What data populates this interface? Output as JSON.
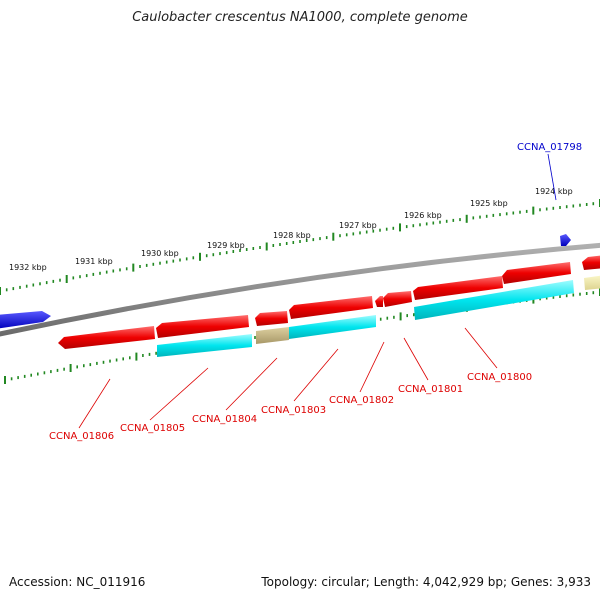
{
  "title": "Caulobacter crescentus NA1000, complete genome",
  "footer": {
    "accession": "Accession: NC_011916",
    "summary": "Topology: circular; Length: 4,042,929 bp; Genes: 3,933"
  },
  "colors": {
    "backbone": "#888888",
    "gene_red": "#ee0000",
    "gene_cyan": "#00e5ee",
    "gene_tan": "#c2b280",
    "gene_khaki": "#eee8aa",
    "gene_blue": "#0000ee",
    "tick": "#228822",
    "label_red": "#dd0000",
    "label_blue": "#0000cc"
  },
  "scale_labels": [
    {
      "text": "1932 kbp",
      "kbp": 1932
    },
    {
      "text": "1931 kbp",
      "kbp": 1931
    },
    {
      "text": "1930 kbp",
      "kbp": 1930
    },
    {
      "text": "1929 kbp",
      "kbp": 1929
    },
    {
      "text": "1928 kbp",
      "kbp": 1928
    },
    {
      "text": "1927 kbp",
      "kbp": 1927
    },
    {
      "text": "1926 kbp",
      "kbp": 1926
    },
    {
      "text": "1925 kbp",
      "kbp": 1925
    },
    {
      "text": "1924 kbp",
      "kbp": 1924
    }
  ],
  "gene_labels": [
    {
      "id": "CCNA_01806"
    },
    {
      "id": "CCNA_01805"
    },
    {
      "id": "CCNA_01804"
    },
    {
      "id": "CCNA_01803"
    },
    {
      "id": "CCNA_01802"
    },
    {
      "id": "CCNA_01801"
    },
    {
      "id": "CCNA_01800"
    },
    {
      "id": "CCNA_01798"
    }
  ]
}
